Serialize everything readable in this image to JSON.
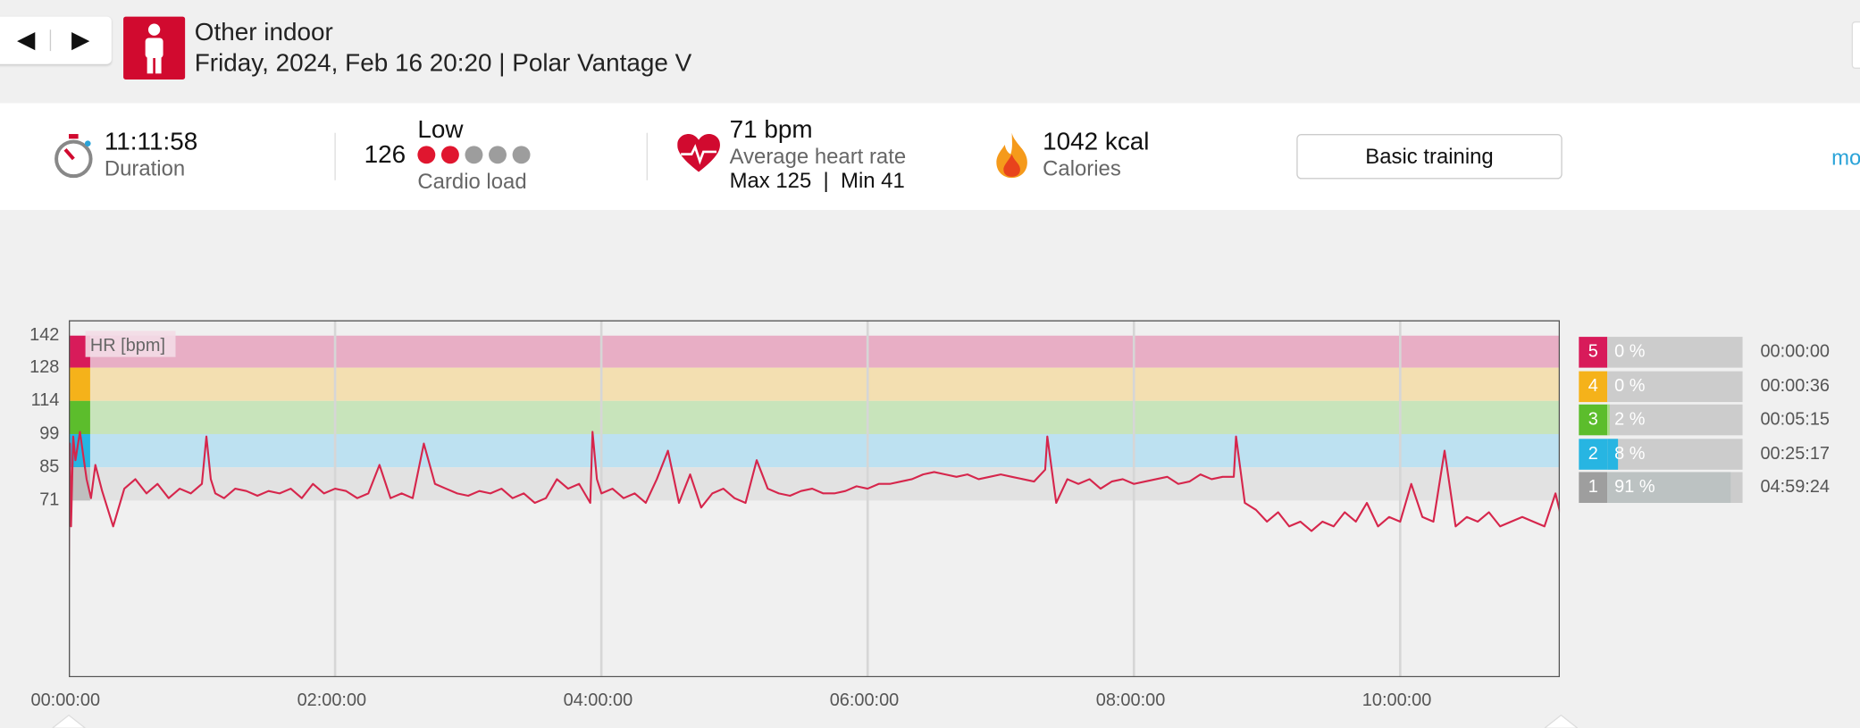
{
  "nav": {
    "prev_icon": "◀",
    "next_icon": "▶"
  },
  "session": {
    "sport": "Other indoor",
    "datetime_device": "Friday, 2024, Feb 16 20:20 | Polar Vantage V"
  },
  "summary": {
    "duration": {
      "value": "11:11:58",
      "label": "Duration"
    },
    "cardio_load": {
      "value": "126",
      "level": "Low",
      "label": "Cardio load",
      "filled": 2,
      "total": 5
    },
    "heart_rate": {
      "value": "71 bpm",
      "label": "Average heart rate",
      "minmax": "Max 125  |  Min 41"
    },
    "calories": {
      "value": "1042 kcal",
      "label": "Calories"
    },
    "training_type_button": "Basic training",
    "more_link": "mo"
  },
  "chart_data": {
    "type": "line",
    "title": "",
    "legend_label": "HR [bpm]",
    "y_ticks": [
      "142",
      "128",
      "114",
      "99",
      "85",
      "71"
    ],
    "x_ticks": [
      "00:00:00",
      "02:00:00",
      "04:00:00",
      "06:00:00",
      "08:00:00",
      "10:00:00"
    ],
    "x_range_seconds": [
      0,
      40318
    ],
    "zones": [
      {
        "zone": "5",
        "from": 128,
        "to": 142,
        "color": "#e8aec5"
      },
      {
        "zone": "4",
        "from": 114,
        "to": 128,
        "color": "#f3dfb1"
      },
      {
        "zone": "3",
        "from": 99,
        "to": 114,
        "color": "#c8e4bb"
      },
      {
        "zone": "2",
        "from": 85,
        "to": 99,
        "color": "#bde1f1"
      },
      {
        "zone": "1",
        "from": 71,
        "to": 85,
        "color": "#e2e2e2"
      }
    ],
    "series": [
      {
        "color": "#d6264c",
        "x_minutes": [
          0,
          0.5,
          1,
          2,
          3,
          5,
          8,
          10,
          12,
          15,
          20,
          25,
          30,
          35,
          40,
          45,
          50,
          55,
          60,
          62,
          64,
          66,
          70,
          75,
          80,
          85,
          90,
          95,
          100,
          105,
          110,
          115,
          120,
          125,
          130,
          135,
          140,
          145,
          150,
          155,
          160,
          165,
          170,
          175,
          180,
          185,
          190,
          195,
          200,
          205,
          210,
          215,
          220,
          225,
          230,
          235,
          236,
          238,
          240,
          245,
          250,
          255,
          260,
          265,
          270,
          275,
          280,
          285,
          290,
          295,
          300,
          305,
          310,
          315,
          320,
          325,
          330,
          335,
          340,
          345,
          350,
          355,
          360,
          365,
          370,
          375,
          380,
          385,
          390,
          395,
          400,
          405,
          410,
          415,
          420,
          425,
          430,
          435,
          440,
          441,
          445,
          450,
          455,
          460,
          465,
          470,
          475,
          480,
          485,
          490,
          495,
          500,
          505,
          510,
          515,
          520,
          525,
          526,
          530,
          535,
          540,
          545,
          550,
          555,
          560,
          565,
          570,
          575,
          580,
          585,
          590,
          595,
          600,
          605,
          610,
          615,
          620,
          625,
          630,
          635,
          640,
          645,
          650,
          655,
          660,
          665,
          670,
          672
        ],
        "y_bpm": [
          41,
          95,
          60,
          98,
          88,
          100,
          80,
          72,
          86,
          75,
          60,
          76,
          80,
          74,
          78,
          72,
          76,
          74,
          78,
          98,
          80,
          74,
          72,
          76,
          75,
          73,
          75,
          74,
          76,
          72,
          78,
          74,
          76,
          75,
          72,
          74,
          86,
          72,
          74,
          72,
          95,
          78,
          76,
          74,
          73,
          75,
          74,
          76,
          72,
          74,
          70,
          72,
          80,
          76,
          78,
          70,
          100,
          80,
          74,
          76,
          72,
          74,
          70,
          80,
          92,
          70,
          82,
          68,
          74,
          76,
          72,
          70,
          88,
          76,
          74,
          73,
          75,
          76,
          74,
          74,
          75,
          77,
          76,
          78,
          78,
          79,
          80,
          82,
          83,
          82,
          81,
          82,
          80,
          81,
          82,
          81,
          80,
          79,
          84,
          98,
          70,
          80,
          78,
          80,
          76,
          79,
          80,
          78,
          79,
          80,
          81,
          78,
          79,
          82,
          80,
          81,
          81,
          98,
          70,
          67,
          62,
          66,
          60,
          62,
          58,
          62,
          60,
          66,
          62,
          70,
          60,
          64,
          62,
          78,
          64,
          62,
          92,
          60,
          64,
          62,
          66,
          60,
          62,
          64,
          62,
          60,
          74,
          66
        ]
      }
    ]
  },
  "zone_table": [
    {
      "zone": "5",
      "percent": "0 %",
      "fraction": 0.0,
      "time": "00:00:00",
      "color": "#d81b5a",
      "fill": "#f2b8cf"
    },
    {
      "zone": "4",
      "percent": "0 %",
      "fraction": 0.0,
      "time": "00:00:36",
      "color": "#f5b21a",
      "fill": "#f8d78a"
    },
    {
      "zone": "3",
      "percent": "2 %",
      "fraction": 0.02,
      "time": "00:05:15",
      "color": "#5cbd2c",
      "fill": "#a6dc87"
    },
    {
      "zone": "2",
      "percent": "8 %",
      "fraction": 0.08,
      "time": "00:25:17",
      "color": "#27b5e2",
      "fill": "#27b5e2"
    },
    {
      "zone": "1",
      "percent": "91 %",
      "fraction": 0.91,
      "time": "04:59:24",
      "color": "#9e9e9e",
      "fill": "#bcc2c2"
    }
  ]
}
